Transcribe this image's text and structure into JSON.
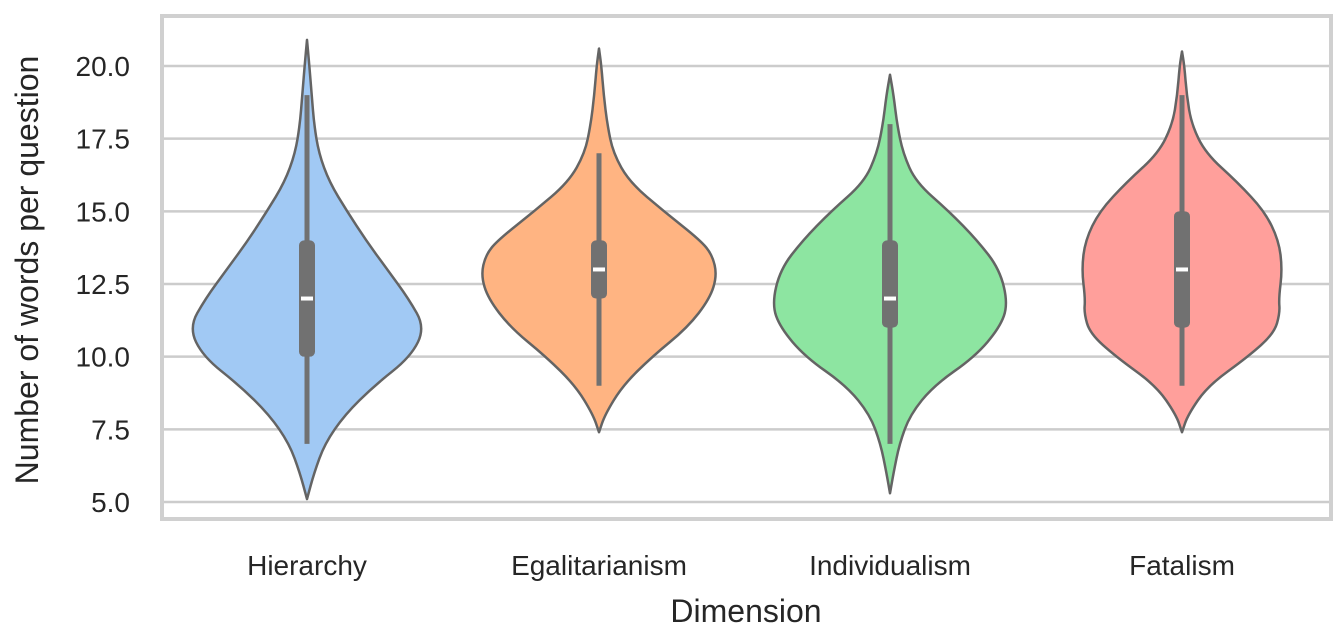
{
  "chart_data": {
    "type": "violin",
    "title": "",
    "xlabel": "Dimension",
    "ylabel": "Number of words per question",
    "ylim": [
      4.4,
      21.6
    ],
    "yticks": [
      5.0,
      7.5,
      10.0,
      12.5,
      15.0,
      17.5,
      20.0
    ],
    "ytick_labels": [
      "5.0",
      "7.5",
      "10.0",
      "12.5",
      "15.0",
      "17.5",
      "20.0"
    ],
    "grid": "horizontal",
    "categories": [
      "Hierarchy",
      "Egalitarianism",
      "Individualism",
      "Fatalism"
    ],
    "series": [
      {
        "category": "Hierarchy",
        "color": "#a1c9f4",
        "median": 12.0,
        "q1": 10.0,
        "q3": 14.0,
        "whisker_low": 7.0,
        "whisker_high": 19.0,
        "density": [
          [
            5.1,
            0.0
          ],
          [
            6.0,
            0.06
          ],
          [
            7.0,
            0.15
          ],
          [
            8.0,
            0.32
          ],
          [
            9.0,
            0.57
          ],
          [
            10.0,
            0.88
          ],
          [
            11.0,
            1.0
          ],
          [
            12.0,
            0.86
          ],
          [
            13.0,
            0.68
          ],
          [
            14.0,
            0.5
          ],
          [
            15.0,
            0.34
          ],
          [
            16.0,
            0.19
          ],
          [
            17.0,
            0.1
          ],
          [
            18.0,
            0.06
          ],
          [
            19.0,
            0.04
          ],
          [
            20.0,
            0.02
          ],
          [
            20.9,
            0.0
          ]
        ]
      },
      {
        "category": "Egalitarianism",
        "color": "#ffb482",
        "median": 13.0,
        "q1": 12.0,
        "q3": 14.0,
        "whisker_low": 9.0,
        "whisker_high": 17.0,
        "density": [
          [
            7.4,
            0.0
          ],
          [
            8.0,
            0.05
          ],
          [
            9.0,
            0.2
          ],
          [
            10.0,
            0.45
          ],
          [
            11.0,
            0.75
          ],
          [
            12.0,
            0.94
          ],
          [
            12.8,
            1.0
          ],
          [
            13.5,
            0.96
          ],
          [
            14.0,
            0.86
          ],
          [
            15.0,
            0.55
          ],
          [
            16.0,
            0.26
          ],
          [
            17.0,
            0.12
          ],
          [
            18.0,
            0.07
          ],
          [
            19.0,
            0.04
          ],
          [
            20.0,
            0.02
          ],
          [
            20.6,
            0.0
          ]
        ]
      },
      {
        "category": "Individualism",
        "color": "#8de5a1",
        "median": 12.0,
        "q1": 11.0,
        "q3": 14.0,
        "whisker_low": 7.0,
        "whisker_high": 18.0,
        "density": [
          [
            5.3,
            0.0
          ],
          [
            6.0,
            0.03
          ],
          [
            7.0,
            0.08
          ],
          [
            8.0,
            0.17
          ],
          [
            9.0,
            0.37
          ],
          [
            10.0,
            0.72
          ],
          [
            11.0,
            0.93
          ],
          [
            11.8,
            1.0
          ],
          [
            13.0,
            0.93
          ],
          [
            14.0,
            0.74
          ],
          [
            15.0,
            0.5
          ],
          [
            16.0,
            0.22
          ],
          [
            17.0,
            0.11
          ],
          [
            18.0,
            0.06
          ],
          [
            19.0,
            0.03
          ],
          [
            19.7,
            0.0
          ]
        ]
      },
      {
        "category": "Fatalism",
        "color": "#ff9f9b",
        "median": 13.0,
        "q1": 11.0,
        "q3": 15.0,
        "whisker_low": 9.0,
        "whisker_high": 19.0,
        "density": [
          [
            7.4,
            0.0
          ],
          [
            8.0,
            0.05
          ],
          [
            9.0,
            0.22
          ],
          [
            10.0,
            0.56
          ],
          [
            10.8,
            0.78
          ],
          [
            11.5,
            0.83
          ],
          [
            12.0,
            0.82
          ],
          [
            13.0,
            0.85
          ],
          [
            14.0,
            0.82
          ],
          [
            15.0,
            0.7
          ],
          [
            16.0,
            0.47
          ],
          [
            17.0,
            0.2
          ],
          [
            18.0,
            0.08
          ],
          [
            19.0,
            0.04
          ],
          [
            20.0,
            0.02
          ],
          [
            20.5,
            0.0
          ]
        ]
      }
    ]
  },
  "style": {
    "grid_color": "#cccccc",
    "edge_color": "#646464",
    "box_color": "#717171",
    "median_color": "#ffffff"
  }
}
